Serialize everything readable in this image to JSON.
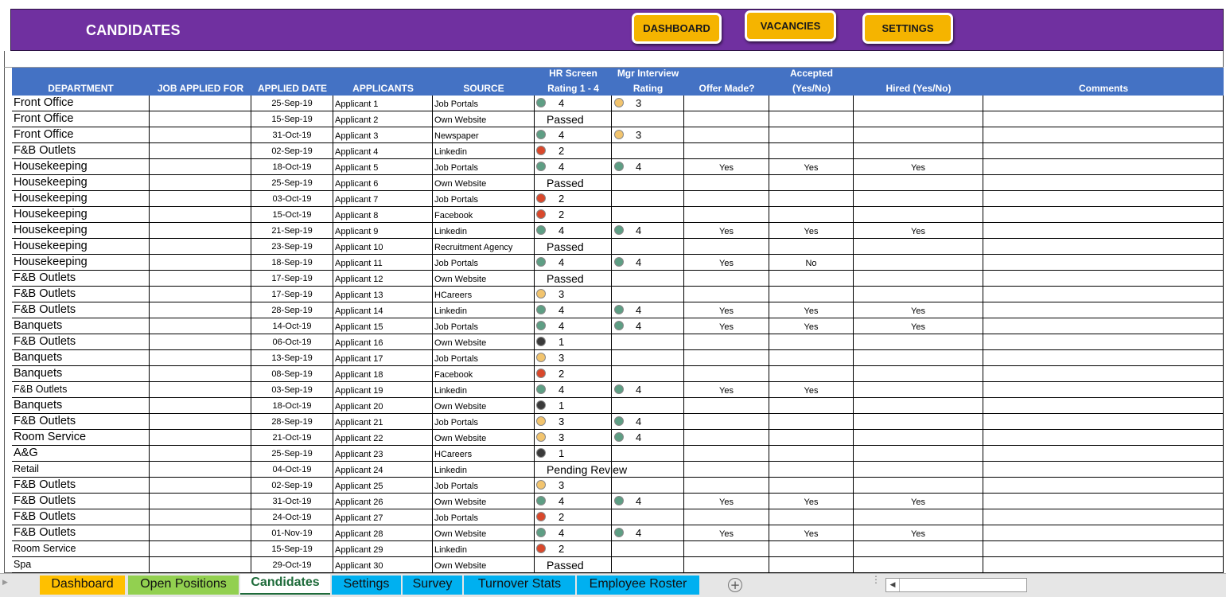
{
  "banner": {
    "title": "CANDIDATES",
    "buttons": [
      "DASHBOARD",
      "VACANCIES",
      "SETTINGS"
    ]
  },
  "colors": {
    "banner": "#7030a0",
    "header": "#4472c4",
    "button": "#f5b400",
    "dot_green": "#5e9e84",
    "dot_yellow": "#f2c46e",
    "dot_red": "#d9482b",
    "dot_black": "#3a3a3a"
  },
  "columns": [
    {
      "l1": "",
      "l2": "DEPARTMENT"
    },
    {
      "l1": "",
      "l2": "JOB APPLIED FOR"
    },
    {
      "l1": "",
      "l2": "APPLIED DATE"
    },
    {
      "l1": "",
      "l2": "APPLICANTS"
    },
    {
      "l1": "",
      "l2": "SOURCE"
    },
    {
      "l1": "HR Screen",
      "l2": "Rating 1 - 4"
    },
    {
      "l1": "Mgr  Interview",
      "l2": "Rating"
    },
    {
      "l1": "",
      "l2": "Offer Made?"
    },
    {
      "l1": "Accepted",
      "l2": "(Yes/No)"
    },
    {
      "l1": "",
      "l2": "Hired (Yes/No)"
    },
    {
      "l1": "",
      "l2": "Comments"
    }
  ],
  "rows": [
    {
      "dept": "Front Office",
      "date": "25-Sep-19",
      "applicant": "Applicant 1",
      "source": "Job Portals",
      "hr": "4",
      "hr_color": "green",
      "mgr": "3",
      "mgr_color": "yellow",
      "offer": "",
      "accepted": "",
      "hired": ""
    },
    {
      "dept": "Front Office",
      "date": "15-Sep-19",
      "applicant": "Applicant 2",
      "source": "Own Website",
      "hr_text": "Passed"
    },
    {
      "dept": "Front Office",
      "date": "31-Oct-19",
      "applicant": "Applicant 3",
      "source": "Newspaper",
      "hr": "4",
      "hr_color": "green",
      "mgr": "3",
      "mgr_color": "yellow"
    },
    {
      "dept": "F&B Outlets",
      "date": "02-Sep-19",
      "applicant": "Applicant 4",
      "source": "Linkedin",
      "hr": "2",
      "hr_color": "red"
    },
    {
      "dept": "Housekeeping",
      "date": "18-Oct-19",
      "applicant": "Applicant 5",
      "source": "Job Portals",
      "hr": "4",
      "hr_color": "green",
      "mgr": "4",
      "mgr_color": "green",
      "offer": "Yes",
      "accepted": "Yes",
      "hired": "Yes"
    },
    {
      "dept": "Housekeeping",
      "date": "25-Sep-19",
      "applicant": "Applicant 6",
      "source": "Own Website",
      "hr_text": "Passed"
    },
    {
      "dept": "Housekeeping",
      "date": "03-Oct-19",
      "applicant": "Applicant 7",
      "source": "Job Portals",
      "hr": "2",
      "hr_color": "red"
    },
    {
      "dept": "Housekeeping",
      "date": "15-Oct-19",
      "applicant": "Applicant 8",
      "source": "Facebook",
      "hr": "2",
      "hr_color": "red"
    },
    {
      "dept": "Housekeeping",
      "date": "21-Sep-19",
      "applicant": "Applicant 9",
      "source": "Linkedin",
      "hr": "4",
      "hr_color": "green",
      "mgr": "4",
      "mgr_color": "green",
      "offer": "Yes",
      "accepted": "Yes",
      "hired": "Yes"
    },
    {
      "dept": "Housekeeping",
      "date": "23-Sep-19",
      "applicant": "Applicant 10",
      "source": "Recruitment Agency",
      "hr_text": "Passed"
    },
    {
      "dept": "Housekeeping",
      "date": "18-Sep-19",
      "applicant": "Applicant 11",
      "source": "Job Portals",
      "hr": "4",
      "hr_color": "green",
      "mgr": "4",
      "mgr_color": "green",
      "offer": "Yes",
      "accepted": "No",
      "hired": ""
    },
    {
      "dept": "F&B Outlets",
      "date": "17-Sep-19",
      "applicant": "Applicant 12",
      "source": "Own Website",
      "hr_text": "Passed"
    },
    {
      "dept": "F&B Outlets",
      "date": "17-Sep-19",
      "applicant": "Applicant 13",
      "source": "HCareers",
      "hr": "3",
      "hr_color": "yellow"
    },
    {
      "dept": "F&B Outlets",
      "date": "28-Sep-19",
      "applicant": "Applicant 14",
      "source": "Linkedin",
      "hr": "4",
      "hr_color": "green",
      "mgr": "4",
      "mgr_color": "green",
      "offer": "Yes",
      "accepted": "Yes",
      "hired": "Yes"
    },
    {
      "dept": "Banquets",
      "date": "14-Oct-19",
      "applicant": "Applicant 15",
      "source": "Job Portals",
      "hr": "4",
      "hr_color": "green",
      "mgr": "4",
      "mgr_color": "green",
      "offer": "Yes",
      "accepted": "Yes",
      "hired": "Yes"
    },
    {
      "dept": "F&B Outlets",
      "date": "06-Oct-19",
      "applicant": "Applicant 16",
      "source": "Own Website",
      "hr": "1",
      "hr_color": "black"
    },
    {
      "dept": "Banquets",
      "date": "13-Sep-19",
      "applicant": "Applicant 17",
      "source": "Job Portals",
      "hr": "3",
      "hr_color": "yellow"
    },
    {
      "dept": "Banquets",
      "date": "08-Sep-19",
      "applicant": "Applicant 18",
      "source": "Facebook",
      "hr": "2",
      "hr_color": "red"
    },
    {
      "dept": "F&B Outlets",
      "small": true,
      "date": "03-Sep-19",
      "applicant": "Applicant 19",
      "source": "Linkedin",
      "hr": "4",
      "hr_color": "green",
      "mgr": "4",
      "mgr_color": "green",
      "offer": "Yes",
      "accepted": "Yes",
      "hired": ""
    },
    {
      "dept": "Banquets",
      "date": "18-Oct-19",
      "applicant": "Applicant 20",
      "source": "Own Website",
      "hr": "1",
      "hr_color": "black"
    },
    {
      "dept": "F&B Outlets",
      "date": "28-Sep-19",
      "applicant": "Applicant 21",
      "source": "Job Portals",
      "hr": "3",
      "hr_color": "yellow",
      "mgr": "4",
      "mgr_color": "green"
    },
    {
      "dept": "Room Service",
      "date": "21-Oct-19",
      "applicant": "Applicant 22",
      "source": "Own Website",
      "hr": "3",
      "hr_color": "yellow",
      "mgr": "4",
      "mgr_color": "green"
    },
    {
      "dept": "A&G",
      "date": "25-Sep-19",
      "applicant": "Applicant 23",
      "source": "HCareers",
      "hr": "1",
      "hr_color": "black"
    },
    {
      "dept": "Retail",
      "small": true,
      "date": "04-Oct-19",
      "applicant": "Applicant 24",
      "source": "Linkedin",
      "hr_text": "Pending Review"
    },
    {
      "dept": "F&B Outlets",
      "date": "02-Sep-19",
      "applicant": "Applicant 25",
      "source": "Job Portals",
      "hr": "3",
      "hr_color": "yellow"
    },
    {
      "dept": "F&B Outlets",
      "date": "31-Oct-19",
      "applicant": "Applicant 26",
      "source": "Own Website",
      "hr": "4",
      "hr_color": "green",
      "mgr": "4",
      "mgr_color": "green",
      "offer": "Yes",
      "accepted": "Yes",
      "hired": "Yes"
    },
    {
      "dept": "F&B Outlets",
      "date": "24-Oct-19",
      "applicant": "Applicant 27",
      "source": "Job Portals",
      "hr": "2",
      "hr_color": "red"
    },
    {
      "dept": "F&B Outlets",
      "date": "01-Nov-19",
      "applicant": "Applicant 28",
      "source": "Own Website",
      "hr": "4",
      "hr_color": "green",
      "mgr": "4",
      "mgr_color": "green",
      "offer": "Yes",
      "accepted": "Yes",
      "hired": "Yes"
    },
    {
      "dept": "Room Service",
      "small": true,
      "date": "15-Sep-19",
      "applicant": "Applicant 29",
      "source": "Linkedin",
      "hr": "2",
      "hr_color": "red"
    },
    {
      "dept": "Spa",
      "small": true,
      "date": "29-Oct-19",
      "applicant": "Applicant 30",
      "source": "Own Website",
      "hr_text": "Passed"
    }
  ],
  "tabs": [
    {
      "label": "Dashboard",
      "color": "#ffc000",
      "active": false
    },
    {
      "label": "Open Positions",
      "color": "#92d050",
      "active": false
    },
    {
      "label": "Candidates",
      "color": "#ffffff",
      "active": true
    },
    {
      "label": "Settings",
      "color": "#00b0f0",
      "active": false
    },
    {
      "label": "Survey",
      "color": "#00b0f0",
      "active": false
    },
    {
      "label": "Turnover Stats",
      "color": "#00b0f0",
      "active": false
    },
    {
      "label": "Employee Roster",
      "color": "#00b0f0",
      "active": false
    }
  ],
  "tabbar": {
    "add_sheet": "+"
  }
}
